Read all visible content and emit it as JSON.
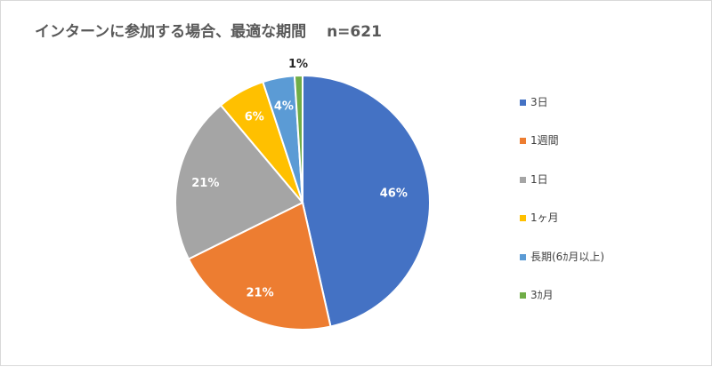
{
  "chart_data": {
    "type": "pie",
    "title": "インターンに参加する場合、最適な期間　 n=621",
    "categories": [
      "3日",
      "1週間",
      "1日",
      "1ヶ月",
      "長期(6ｶ月以上)",
      "3ｶ月"
    ],
    "values": [
      46,
      21,
      21,
      6,
      4,
      1
    ],
    "data_labels": [
      "46%",
      "21%",
      "21%",
      "6%",
      "4%",
      "1%"
    ],
    "colors": [
      "#4472c4",
      "#ed7d31",
      "#a5a5a5",
      "#ffc000",
      "#5b9bd5",
      "#70ad47"
    ],
    "legend_position": "right"
  }
}
